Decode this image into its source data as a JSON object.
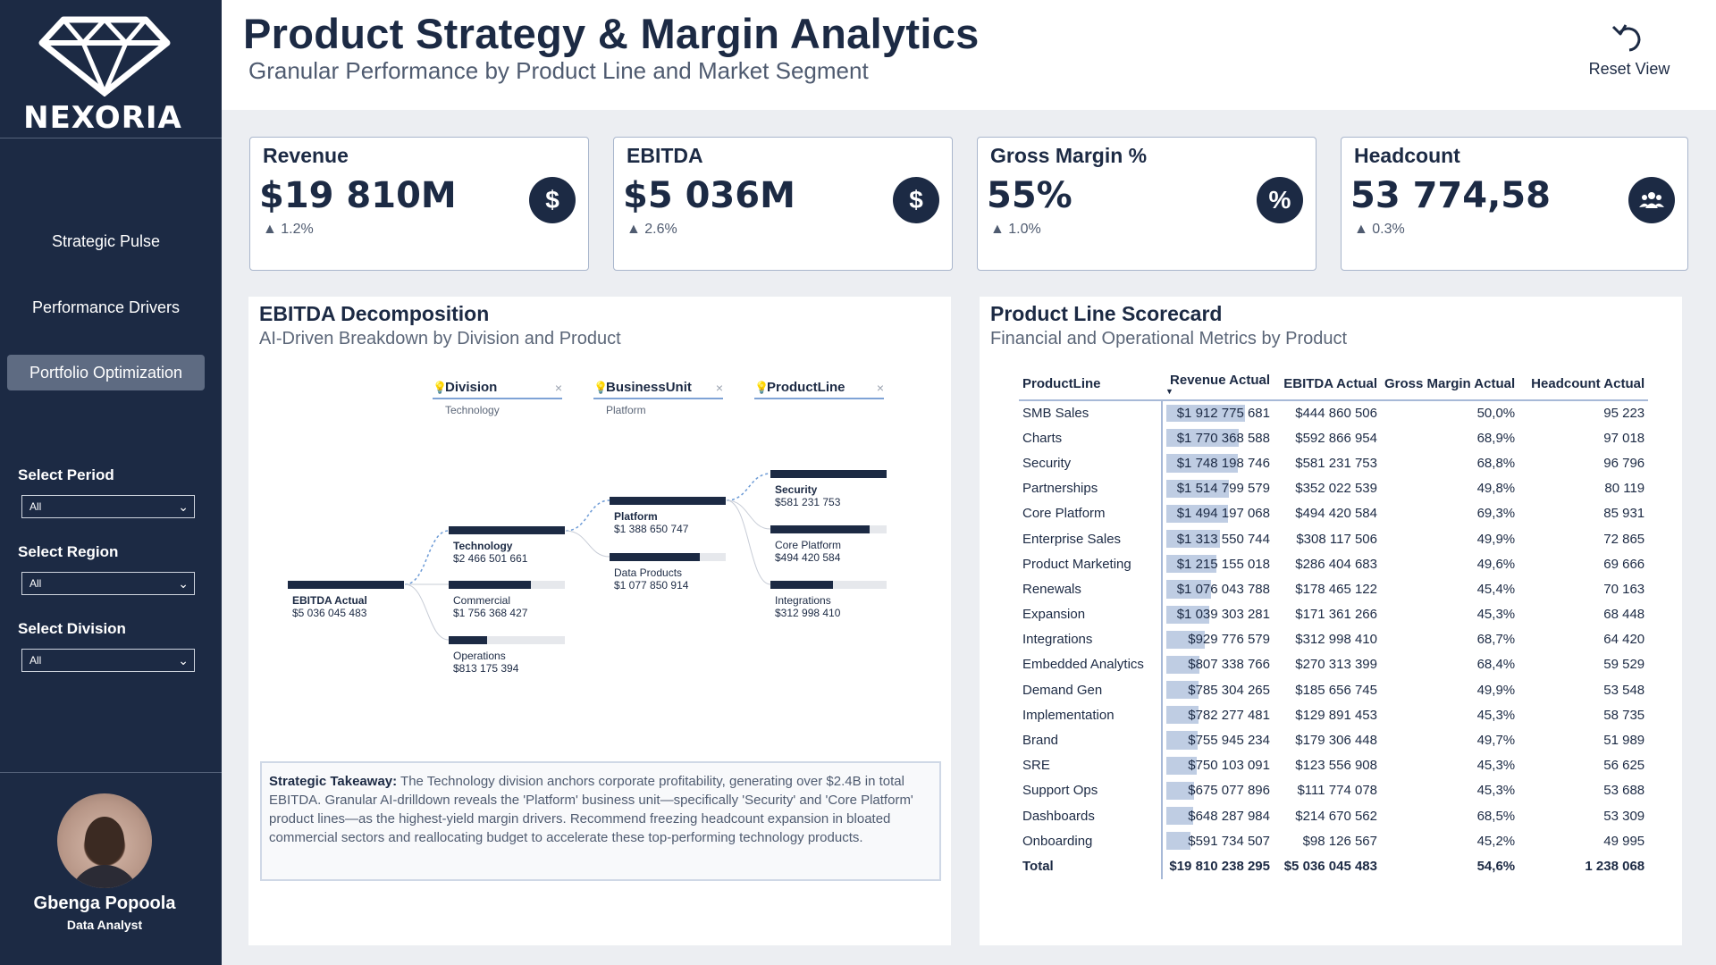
{
  "brand": {
    "name": "NEXORIA"
  },
  "nav": {
    "items": [
      {
        "label": "Strategic Pulse",
        "active": false
      },
      {
        "label": "Performance Drivers",
        "active": false
      },
      {
        "label": "Portfolio Optimization",
        "active": true
      }
    ]
  },
  "filters": [
    {
      "label": "Select Period",
      "value": "All"
    },
    {
      "label": "Select Region",
      "value": "All"
    },
    {
      "label": "Select Division",
      "value": "All"
    }
  ],
  "user": {
    "name": "Gbenga Popoola",
    "role": "Data Analyst"
  },
  "header": {
    "title": "Product Strategy & Margin Analytics",
    "subtitle": "Granular Performance by Product Line and Market Segment",
    "reset_label": "Reset View"
  },
  "kpis": [
    {
      "title": "Revenue",
      "value": "$19 810M",
      "delta": "▲ 1.2%",
      "icon": "dollar-icon",
      "symbol": "$"
    },
    {
      "title": "EBITDA",
      "value": "$5 036M",
      "delta": "▲ 2.6%",
      "icon": "dollar-icon",
      "symbol": "$"
    },
    {
      "title": "Gross Margin %",
      "value": "55%",
      "delta": "▲ 1.0%",
      "icon": "percent-icon",
      "symbol": "%"
    },
    {
      "title": "Headcount",
      "value": "53 774,58",
      "delta": "▲ 0.3%",
      "icon": "people-icon",
      "symbol": "👥"
    }
  ],
  "decomposition": {
    "title": "EBITDA Decomposition",
    "subtitle": "AI-Driven Breakdown by Division and Product",
    "levels": [
      {
        "label": "Division",
        "selected": "Technology"
      },
      {
        "label": "BusinessUnit",
        "selected": "Platform"
      },
      {
        "label": "ProductLine",
        "selected": ""
      }
    ],
    "root": {
      "name": "EBITDA Actual",
      "value": "$5 036 045 483",
      "fill": 1.0
    },
    "division": [
      {
        "name": "Technology",
        "value": "$2 466 501 661",
        "fill": 1.0,
        "selected": true
      },
      {
        "name": "Commercial",
        "value": "$1 756 368 427",
        "fill": 0.71,
        "selected": false
      },
      {
        "name": "Operations",
        "value": "$813 175 394",
        "fill": 0.33,
        "selected": false
      }
    ],
    "business_unit": [
      {
        "name": "Platform",
        "value": "$1 388 650 747",
        "fill": 1.0,
        "selected": true
      },
      {
        "name": "Data Products",
        "value": "$1 077 850 914",
        "fill": 0.78,
        "selected": false
      }
    ],
    "product_line": [
      {
        "name": "Security",
        "value": "$581 231 753",
        "fill": 1.0,
        "selected": true
      },
      {
        "name": "Core Platform",
        "value": "$494 420 584",
        "fill": 0.85,
        "selected": false
      },
      {
        "name": "Integrations",
        "value": "$312 998 410",
        "fill": 0.54,
        "selected": false
      }
    ],
    "takeaway_label": "Strategic Takeaway:",
    "takeaway_text": "The Technology division anchors corporate profitability, generating over $2.4B in total EBITDA. Granular AI-drilldown reveals the 'Platform' business unit—specifically 'Security' and 'Core Platform' product lines—as the highest-yield margin drivers. Recommend freezing headcount expansion in bloated commercial sectors and reallocating budget to accelerate these top-performing technology products."
  },
  "scorecard": {
    "title": "Product Line Scorecard",
    "subtitle": "Financial and Operational Metrics by Product",
    "columns": [
      "ProductLine",
      "Revenue Actual",
      "EBITDA Actual",
      "Gross Margin Actual",
      "Headcount Actual"
    ],
    "rows": [
      {
        "name": "SMB Sales",
        "revenue": "$1 912 775 681",
        "rev_ratio": 1.0,
        "ebitda": "$444 860 506",
        "gm": "50,0%",
        "hc": "95 223"
      },
      {
        "name": "Charts",
        "revenue": "$1 770 368 588",
        "rev_ratio": 0.926,
        "ebitda": "$592 866 954",
        "gm": "68,9%",
        "hc": "97 018"
      },
      {
        "name": "Security",
        "revenue": "$1 748 198 746",
        "rev_ratio": 0.914,
        "ebitda": "$581 231 753",
        "gm": "68,8%",
        "hc": "96 796"
      },
      {
        "name": "Partnerships",
        "revenue": "$1 514 799 579",
        "rev_ratio": 0.792,
        "ebitda": "$352 022 539",
        "gm": "49,8%",
        "hc": "80 119"
      },
      {
        "name": "Core Platform",
        "revenue": "$1 494 197 068",
        "rev_ratio": 0.781,
        "ebitda": "$494 420 584",
        "gm": "69,3%",
        "hc": "85 931"
      },
      {
        "name": "Enterprise Sales",
        "revenue": "$1 313 550 744",
        "rev_ratio": 0.687,
        "ebitda": "$308 117 506",
        "gm": "49,9%",
        "hc": "72 865"
      },
      {
        "name": "Product Marketing",
        "revenue": "$1 215 155 018",
        "rev_ratio": 0.635,
        "ebitda": "$286 404 683",
        "gm": "49,6%",
        "hc": "69 666"
      },
      {
        "name": "Renewals",
        "revenue": "$1 076 043 788",
        "rev_ratio": 0.563,
        "ebitda": "$178 465 122",
        "gm": "45,4%",
        "hc": "70 163"
      },
      {
        "name": "Expansion",
        "revenue": "$1 039 303 281",
        "rev_ratio": 0.543,
        "ebitda": "$171 361 266",
        "gm": "45,3%",
        "hc": "68 448"
      },
      {
        "name": "Integrations",
        "revenue": "$929 776 579",
        "rev_ratio": 0.486,
        "ebitda": "$312 998 410",
        "gm": "68,7%",
        "hc": "64 420"
      },
      {
        "name": "Embedded Analytics",
        "revenue": "$807 338 766",
        "rev_ratio": 0.422,
        "ebitda": "$270 313 399",
        "gm": "68,4%",
        "hc": "59 529"
      },
      {
        "name": "Demand Gen",
        "revenue": "$785 304 265",
        "rev_ratio": 0.411,
        "ebitda": "$185 656 745",
        "gm": "49,9%",
        "hc": "53 548"
      },
      {
        "name": "Implementation",
        "revenue": "$782 277 481",
        "rev_ratio": 0.409,
        "ebitda": "$129 891 453",
        "gm": "45,3%",
        "hc": "58 735"
      },
      {
        "name": "Brand",
        "revenue": "$755 945 234",
        "rev_ratio": 0.395,
        "ebitda": "$179 306 448",
        "gm": "49,7%",
        "hc": "51 989"
      },
      {
        "name": "SRE",
        "revenue": "$750 103 091",
        "rev_ratio": 0.392,
        "ebitda": "$123 556 908",
        "gm": "45,3%",
        "hc": "56 625"
      },
      {
        "name": "Support Ops",
        "revenue": "$675 077 896",
        "rev_ratio": 0.353,
        "ebitda": "$111 774 078",
        "gm": "45,3%",
        "hc": "53 688"
      },
      {
        "name": "Dashboards",
        "revenue": "$648 287 984",
        "rev_ratio": 0.339,
        "ebitda": "$214 670 562",
        "gm": "68,5%",
        "hc": "53 309"
      },
      {
        "name": "Onboarding",
        "revenue": "$591 734 507",
        "rev_ratio": 0.309,
        "ebitda": "$98 126 567",
        "gm": "45,2%",
        "hc": "49 995"
      }
    ],
    "total": {
      "name": "Total",
      "revenue": "$19 810 238 295",
      "ebitda": "$5 036 045 483",
      "gm": "54,6%",
      "hc": "1 238 068"
    }
  },
  "colors": {
    "navy": "#1c2a44",
    "accent": "#7fa3d6",
    "bar": "#bfcde3"
  }
}
